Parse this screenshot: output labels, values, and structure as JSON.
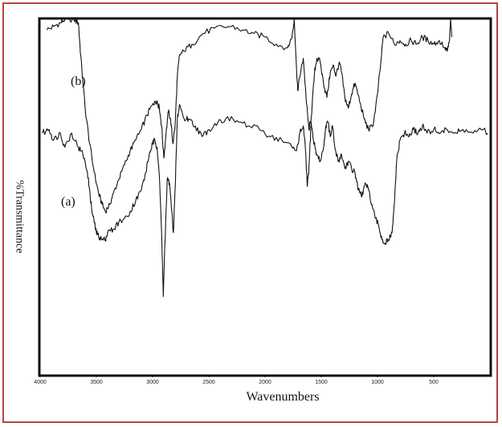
{
  "chart_data": {
    "type": "line",
    "xlabel": "Wavenumbers",
    "ylabel": "%Transmittance",
    "xlim": [
      4000,
      0
    ],
    "x_ticks": [
      "4000",
      "3500",
      "3000",
      "2500",
      "2000",
      "1500",
      "1000",
      "500"
    ],
    "grid": false,
    "series": [
      {
        "name": "(b)",
        "points": [
          [
            3940,
            97
          ],
          [
            3880,
            98
          ],
          [
            3820,
            99
          ],
          [
            3780,
            100
          ],
          [
            3700,
            100
          ],
          [
            3660,
            99
          ],
          [
            3640,
            90
          ],
          [
            3600,
            75
          ],
          [
            3560,
            65
          ],
          [
            3520,
            57
          ],
          [
            3480,
            51
          ],
          [
            3450,
            48
          ],
          [
            3420,
            46
          ],
          [
            3380,
            48
          ],
          [
            3350,
            51
          ],
          [
            3300,
            55
          ],
          [
            3250,
            59
          ],
          [
            3200,
            63
          ],
          [
            3150,
            66
          ],
          [
            3100,
            69
          ],
          [
            3050,
            73
          ],
          [
            3000,
            76
          ],
          [
            2980,
            77
          ],
          [
            2960,
            77
          ],
          [
            2940,
            75
          ],
          [
            2920,
            70
          ],
          [
            2900,
            61
          ],
          [
            2880,
            68
          ],
          [
            2860,
            74
          ],
          [
            2840,
            72
          ],
          [
            2820,
            65
          ],
          [
            2800,
            70
          ],
          [
            2780,
            84
          ],
          [
            2760,
            90
          ],
          [
            2720,
            91
          ],
          [
            2650,
            93
          ],
          [
            2550,
            96
          ],
          [
            2450,
            97.5
          ],
          [
            2300,
            98
          ],
          [
            2200,
            97
          ],
          [
            2100,
            96
          ],
          [
            2000,
            95
          ],
          [
            1900,
            93
          ],
          [
            1800,
            92
          ],
          [
            1760,
            95
          ],
          [
            1740,
            100
          ],
          [
            1720,
            86
          ],
          [
            1710,
            80
          ],
          [
            1690,
            84
          ],
          [
            1660,
            89
          ],
          [
            1630,
            76
          ],
          [
            1610,
            69
          ],
          [
            1590,
            72
          ],
          [
            1560,
            85
          ],
          [
            1540,
            89
          ],
          [
            1510,
            88
          ],
          [
            1480,
            82
          ],
          [
            1450,
            78
          ],
          [
            1420,
            85
          ],
          [
            1390,
            87
          ],
          [
            1370,
            84
          ],
          [
            1340,
            88
          ],
          [
            1320,
            85
          ],
          [
            1290,
            78
          ],
          [
            1260,
            75
          ],
          [
            1230,
            79
          ],
          [
            1200,
            82
          ],
          [
            1150,
            76
          ],
          [
            1120,
            72
          ],
          [
            1080,
            69
          ],
          [
            1040,
            70
          ],
          [
            1000,
            79
          ],
          [
            970,
            88
          ],
          [
            950,
            95
          ],
          [
            900,
            96
          ],
          [
            850,
            93
          ],
          [
            800,
            94
          ],
          [
            750,
            93
          ],
          [
            700,
            94
          ],
          [
            650,
            93
          ],
          [
            600,
            95
          ],
          [
            550,
            94
          ],
          [
            500,
            93
          ],
          [
            450,
            94
          ],
          [
            400,
            92
          ],
          [
            380,
            91
          ],
          [
            360,
            94
          ],
          [
            350,
            100
          ],
          [
            340,
            95
          ]
        ]
      },
      {
        "name": "(a)",
        "points": [
          [
            3980,
            68
          ],
          [
            3920,
            69
          ],
          [
            3880,
            66
          ],
          [
            3820,
            68
          ],
          [
            3780,
            64
          ],
          [
            3720,
            68
          ],
          [
            3660,
            64
          ],
          [
            3620,
            62
          ],
          [
            3580,
            57
          ],
          [
            3560,
            52
          ],
          [
            3540,
            46
          ],
          [
            3520,
            43
          ],
          [
            3500,
            40
          ],
          [
            3480,
            39
          ],
          [
            3450,
            38
          ],
          [
            3420,
            38
          ],
          [
            3400,
            40
          ],
          [
            3350,
            41
          ],
          [
            3300,
            43
          ],
          [
            3250,
            44
          ],
          [
            3200,
            46
          ],
          [
            3150,
            49
          ],
          [
            3100,
            52
          ],
          [
            3060,
            57
          ],
          [
            3030,
            62
          ],
          [
            3000,
            65
          ],
          [
            2980,
            66
          ],
          [
            2960,
            64
          ],
          [
            2940,
            56
          ],
          [
            2920,
            40
          ],
          [
            2905,
            22
          ],
          [
            2890,
            37
          ],
          [
            2870,
            55
          ],
          [
            2850,
            54
          ],
          [
            2830,
            46
          ],
          [
            2815,
            40
          ],
          [
            2800,
            52
          ],
          [
            2780,
            72
          ],
          [
            2760,
            76
          ],
          [
            2720,
            72
          ],
          [
            2680,
            72
          ],
          [
            2620,
            70
          ],
          [
            2560,
            67
          ],
          [
            2500,
            69
          ],
          [
            2420,
            71
          ],
          [
            2350,
            72
          ],
          [
            2250,
            71.5
          ],
          [
            2150,
            70
          ],
          [
            2050,
            69
          ],
          [
            1950,
            67
          ],
          [
            1850,
            66
          ],
          [
            1760,
            64
          ],
          [
            1720,
            63
          ],
          [
            1690,
            68
          ],
          [
            1660,
            70
          ],
          [
            1640,
            63
          ],
          [
            1625,
            53
          ],
          [
            1610,
            58
          ],
          [
            1590,
            71
          ],
          [
            1570,
            66
          ],
          [
            1540,
            62
          ],
          [
            1510,
            60
          ],
          [
            1480,
            64
          ],
          [
            1460,
            70
          ],
          [
            1440,
            71
          ],
          [
            1420,
            67
          ],
          [
            1400,
            70
          ],
          [
            1380,
            64
          ],
          [
            1350,
            60
          ],
          [
            1320,
            62
          ],
          [
            1290,
            58
          ],
          [
            1260,
            60
          ],
          [
            1230,
            58
          ],
          [
            1200,
            57
          ],
          [
            1170,
            52
          ],
          [
            1140,
            50
          ],
          [
            1110,
            54
          ],
          [
            1080,
            52
          ],
          [
            1050,
            48
          ],
          [
            1020,
            44
          ],
          [
            990,
            42
          ],
          [
            960,
            38
          ],
          [
            930,
            37
          ],
          [
            900,
            38
          ],
          [
            870,
            40
          ],
          [
            850,
            48
          ],
          [
            830,
            60
          ],
          [
            800,
            66
          ],
          [
            760,
            68
          ],
          [
            720,
            67
          ],
          [
            680,
            69
          ],
          [
            640,
            68
          ],
          [
            600,
            70
          ],
          [
            560,
            68
          ],
          [
            500,
            69
          ],
          [
            440,
            68
          ],
          [
            380,
            69
          ],
          [
            300,
            68
          ],
          [
            240,
            69
          ],
          [
            150,
            68
          ],
          [
            60,
            69
          ],
          [
            20,
            68
          ]
        ]
      }
    ]
  }
}
